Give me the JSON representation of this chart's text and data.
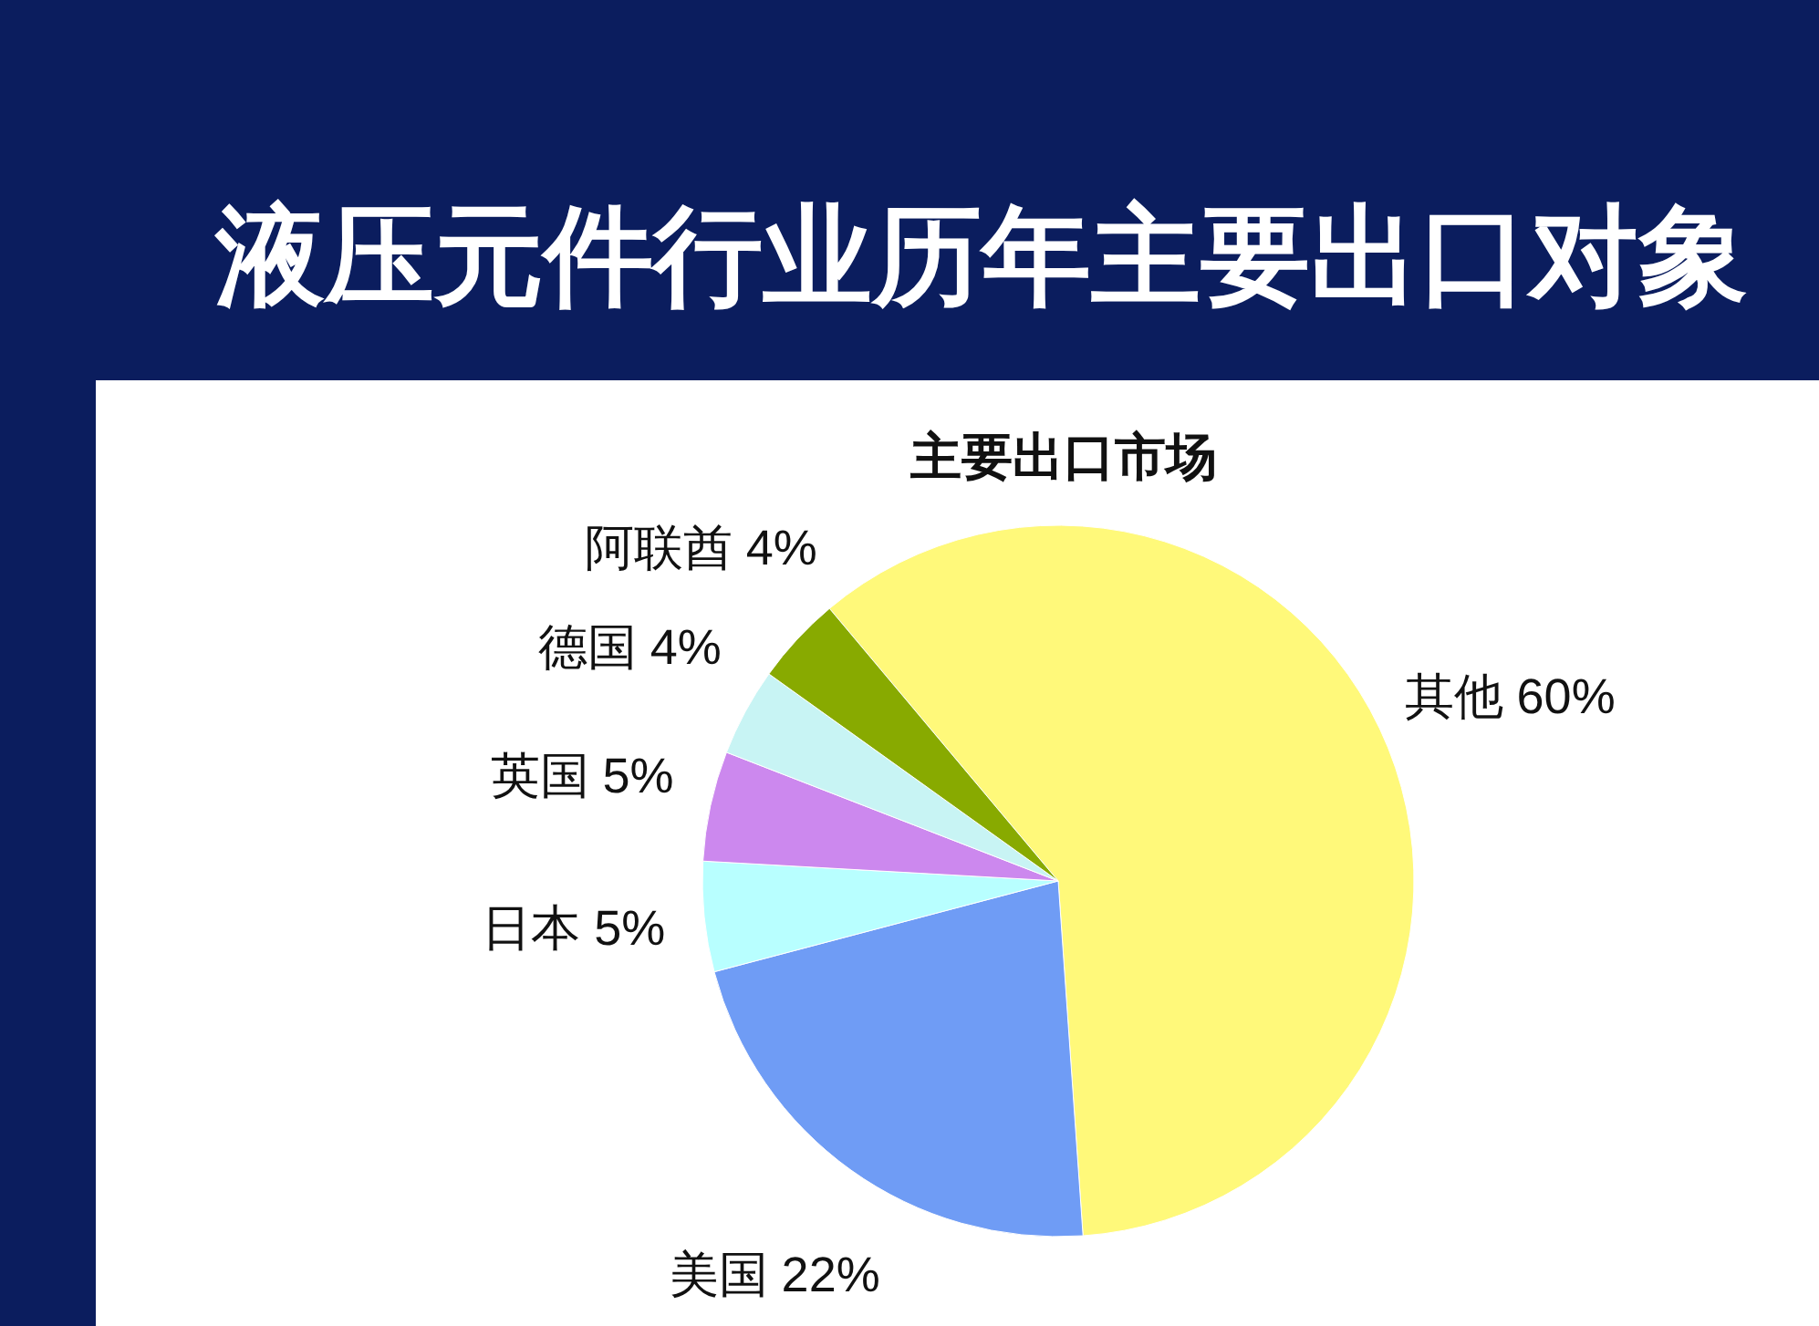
{
  "chart_data": {
    "type": "pie",
    "title": "液压元件行业历年主要出口对象",
    "subtitle": "主要出口市场",
    "categories": [
      "其他",
      "美国",
      "日本",
      "英国",
      "德国",
      "阿联酋"
    ],
    "values": [
      60,
      22,
      5,
      5,
      4,
      4
    ],
    "colors": [
      "#fff97a",
      "#6f9cf5",
      "#b8ffff",
      "#cc88ee",
      "#c8f4f4",
      "#88aa00"
    ],
    "value_labels": [
      "60%",
      "22%",
      "5%",
      "5%",
      "4%",
      "4%"
    ]
  }
}
